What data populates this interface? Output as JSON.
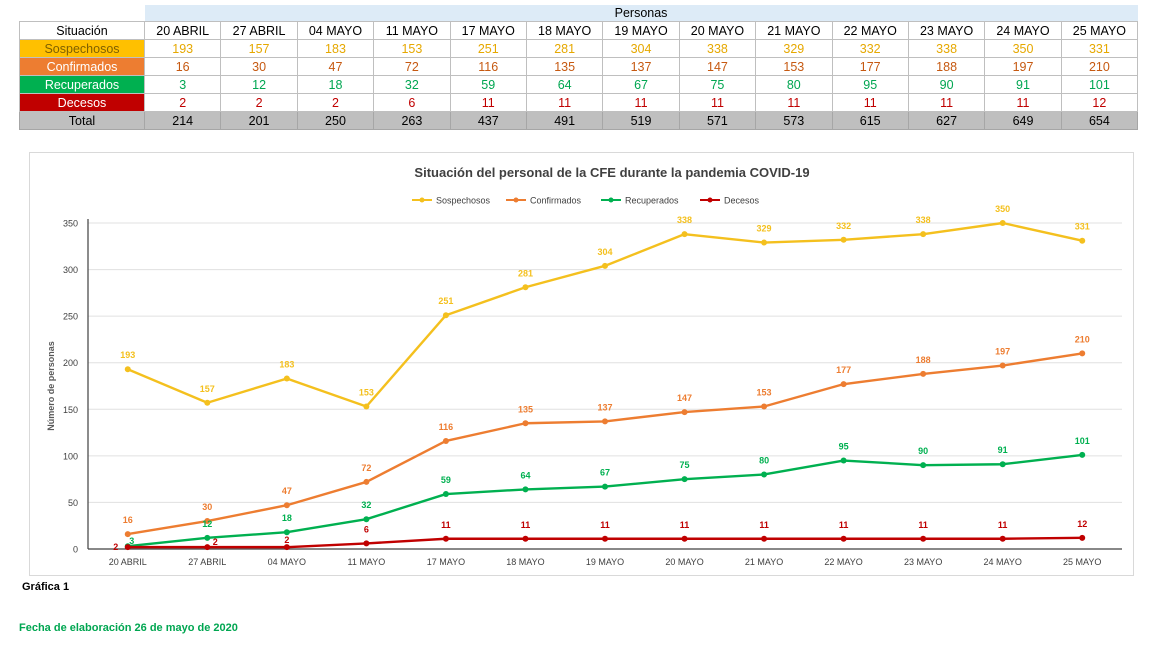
{
  "table": {
    "group_header": "Personas",
    "situacion_header": "Situación",
    "dates": [
      "20 ABRIL",
      "27 ABRIL",
      "04 MAYO",
      "11 MAYO",
      "17 MAYO",
      "18 MAYO",
      "19 MAYO",
      "20 MAYO",
      "21 MAYO",
      "22 MAYO",
      "23 MAYO",
      "24 MAYO",
      "25 MAYO"
    ],
    "rows": [
      {
        "label": "Sospechosos",
        "label_bg": "#ffc000",
        "label_color": "#7f6000",
        "value_color": "#e6a800",
        "values": [
          "193",
          "157",
          "183",
          "153",
          "251",
          "281",
          "304",
          "338",
          "329",
          "332",
          "338",
          "350",
          "331"
        ]
      },
      {
        "label": "Confirmados",
        "label_bg": "#ed7d31",
        "label_color": "#ffffff",
        "value_color": "#c65911",
        "values": [
          "16",
          "30",
          "47",
          "72",
          "116",
          "135",
          "137",
          "147",
          "153",
          "177",
          "188",
          "197",
          "210"
        ]
      },
      {
        "label": "Recuperados",
        "label_bg": "#00b050",
        "label_color": "#ffffff",
        "value_color": "#00a651",
        "values": [
          "3",
          "12",
          "18",
          "32",
          "59",
          "64",
          "67",
          "75",
          "80",
          "95",
          "90",
          "91",
          "101"
        ]
      },
      {
        "label": "Decesos",
        "label_bg": "#c00000",
        "label_color": "#ffffff",
        "value_color": "#c00000",
        "values": [
          "2",
          "2",
          "2",
          "6",
          "11",
          "11",
          "11",
          "11",
          "11",
          "11",
          "11",
          "11",
          "12"
        ]
      }
    ],
    "total_label": "Total",
    "totals": [
      "214",
      "201",
      "250",
      "263",
      "437",
      "491",
      "519",
      "571",
      "573",
      "615",
      "627",
      "649",
      "654"
    ]
  },
  "chart_data": {
    "type": "line",
    "title": "Situación del personal de la CFE durante la pandemia COVID-19",
    "xlabel": "",
    "ylabel": "Número de personas",
    "ylim": [
      0,
      350
    ],
    "yticks": [
      0,
      50,
      100,
      150,
      200,
      250,
      300,
      350
    ],
    "categories": [
      "20 ABRIL",
      "27 ABRIL",
      "04 MAYO",
      "11 MAYO",
      "17 MAYO",
      "18 MAYO",
      "19 MAYO",
      "20 MAYO",
      "21 MAYO",
      "22 MAYO",
      "23 MAYO",
      "24 MAYO",
      "25 MAYO"
    ],
    "legend_position": "top",
    "grid": true,
    "series": [
      {
        "name": "Sospechosos",
        "color": "#f4c01e",
        "values": [
          193,
          157,
          183,
          153,
          251,
          281,
          304,
          338,
          329,
          332,
          338,
          350,
          331
        ]
      },
      {
        "name": "Confirmados",
        "color": "#ed7d31",
        "values": [
          16,
          30,
          47,
          72,
          116,
          135,
          137,
          147,
          153,
          177,
          188,
          197,
          210
        ]
      },
      {
        "name": "Recuperados",
        "color": "#00b050",
        "values": [
          3,
          12,
          18,
          32,
          59,
          64,
          67,
          75,
          80,
          95,
          90,
          91,
          101
        ]
      },
      {
        "name": "Decesos",
        "color": "#c00000",
        "values": [
          2,
          2,
          2,
          6,
          11,
          11,
          11,
          11,
          11,
          11,
          11,
          11,
          12
        ]
      }
    ]
  },
  "footer": {
    "grafica": "Gráfica 1",
    "fecha": "Fecha de elaboración 26 de mayo de 2020"
  }
}
